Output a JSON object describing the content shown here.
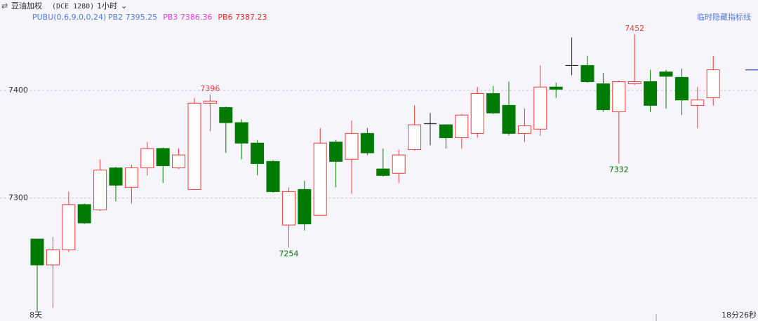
{
  "chart_data": {
    "type": "candlestick",
    "title": "豆油加权",
    "subtitle": "(DCE 1280)",
    "period": "1小时",
    "indicator": "PUBU(0,6,9,0,0,24)",
    "indicator_values": [
      {
        "name": "PB2",
        "value": 7395.25,
        "color": "#4f7ae0"
      },
      {
        "name": "PB3",
        "value": 7386.36,
        "color": "#e040e0"
      },
      {
        "name": "PB6",
        "value": 7387.23,
        "color": "#e02b2b"
      }
    ],
    "hide_button": "临时隐藏指标线",
    "x_start_label": "8天",
    "countdown": "18分26秒",
    "up_color": "#f03a3a",
    "down_color": "#007a00",
    "doji_color": "#222222",
    "price_marker_color": "#4f60e0",
    "ylim": [
      7186,
      7461
    ],
    "yticks": [
      7300,
      7400
    ],
    "grid": true,
    "annotations": [
      7396,
      7254,
      7452,
      7332
    ],
    "categories": [
      null,
      null,
      null,
      null,
      null,
      null,
      null,
      null,
      null,
      null,
      null,
      null,
      null,
      null,
      null,
      null,
      null,
      null,
      null,
      null,
      null,
      null,
      null,
      null,
      null,
      null,
      null,
      null,
      null,
      null,
      null,
      null,
      null,
      null,
      null,
      null,
      null,
      null,
      null,
      null,
      null,
      null,
      null,
      null
    ],
    "open": [
      7262,
      7238,
      7252,
      7294,
      7289,
      7328,
      7310,
      7328,
      7346,
      7328,
      7308,
      7388,
      7384,
      7370,
      7351,
      7334,
      7275,
      7308,
      7284,
      7352,
      7336,
      7360,
      7327,
      7323,
      7345,
      7369,
      7368,
      7356,
      7360,
      7397,
      7386,
      7360,
      7364,
      7403,
      7423,
      7423,
      7406,
      7380,
      7406,
      7408,
      7417,
      7412,
      7386,
      7393
    ],
    "high": [
      7262,
      7264,
      7306,
      7295,
      7336,
      7329,
      7331,
      7352,
      7347,
      7346,
      7393,
      7396,
      7385,
      7373,
      7354,
      7335,
      7310,
      7316,
      7365,
      7354,
      7372,
      7365,
      7346,
      7345,
      7386,
      7379,
      7368,
      7378,
      7403,
      7404,
      7408,
      7383,
      7423,
      7407,
      7449,
      7432,
      7416,
      7409,
      7452,
      7419,
      7419,
      7420,
      7403,
      7432
    ],
    "low": [
      7195,
      7198,
      7250,
      7276,
      7288,
      7297,
      7295,
      7321,
      7314,
      7327,
      7308,
      7362,
      7342,
      7336,
      7321,
      7305,
      7254,
      7270,
      7284,
      7310,
      7304,
      7340,
      7320,
      7314,
      7344,
      7349,
      7346,
      7346,
      7356,
      7378,
      7358,
      7352,
      7358,
      7393,
      7414,
      7407,
      7380,
      7332,
      7405,
      7380,
      7383,
      7377,
      7365,
      7386
    ],
    "close": [
      7238,
      7252,
      7294,
      7277,
      7326,
      7312,
      7328,
      7346,
      7330,
      7340,
      7388,
      7390,
      7370,
      7351,
      7332,
      7306,
      7306,
      7276,
      7351,
      7334,
      7360,
      7342,
      7321,
      7340,
      7368,
      7369,
      7356,
      7377,
      7397,
      7379,
      7360,
      7367,
      7403,
      7401,
      7423,
      7408,
      7382,
      7408,
      7408,
      7386,
      7413,
      7391,
      7391,
      7419
    ]
  }
}
